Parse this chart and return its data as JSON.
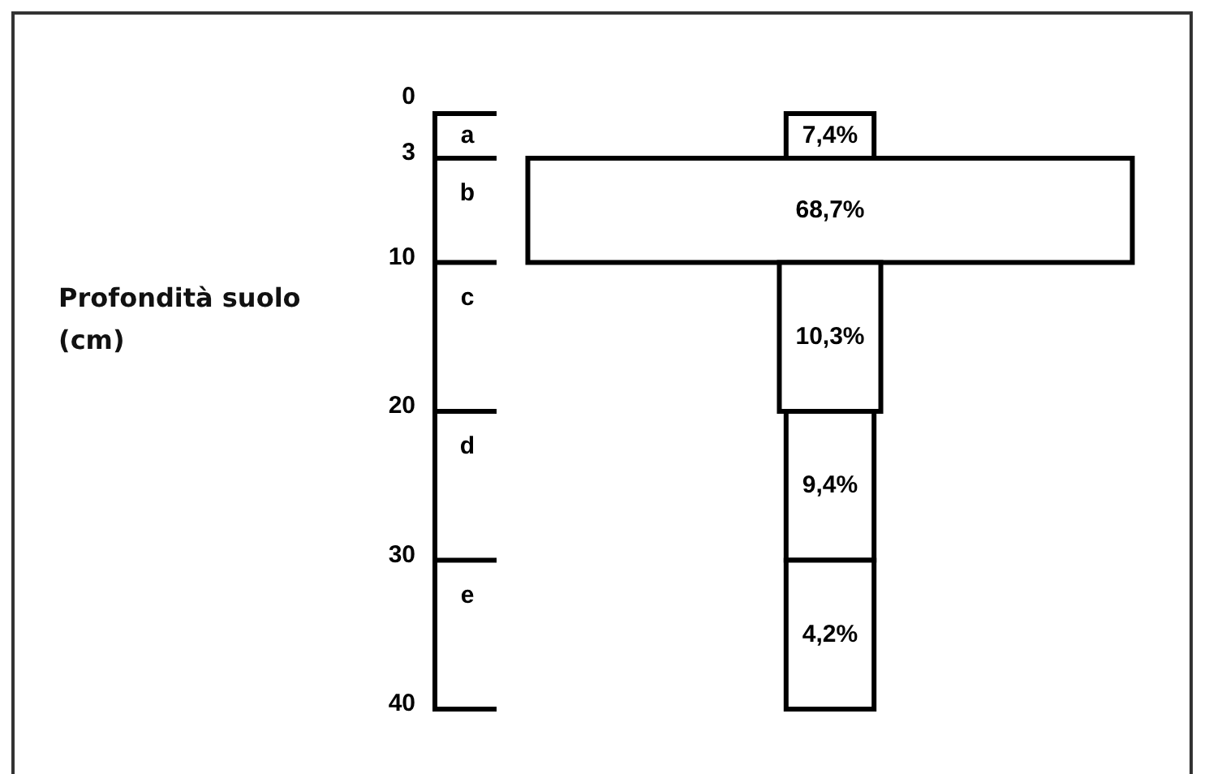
{
  "chart_data": {
    "type": "other",
    "ylabel": "Profondità suolo (cm)",
    "categories": [
      "a",
      "b",
      "c",
      "d",
      "e"
    ],
    "values": [
      7.4,
      68.7,
      10.3,
      9.4,
      4.2
    ],
    "value_labels": [
      "7,4%",
      "68,7%",
      "10,3%",
      "9,4%",
      "4,2%"
    ],
    "color": "#ffffff",
    "annotations": [
      "0",
      "3",
      "10",
      "20",
      "30",
      "40"
    ]
  }
}
